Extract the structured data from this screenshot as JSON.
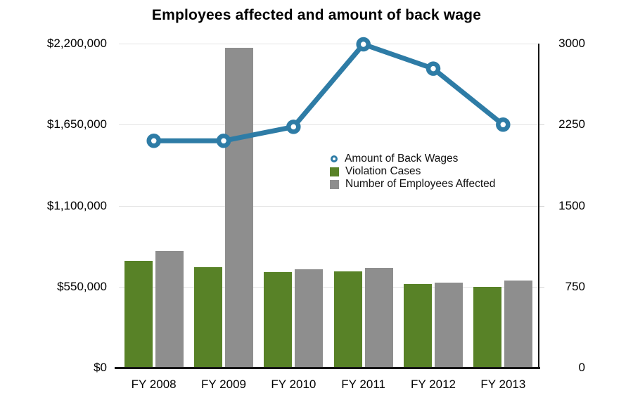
{
  "chart_data": {
    "type": "combo-bar-line",
    "title": "Employees affected and amount of back wage",
    "categories": [
      "FY 2008",
      "FY 2009",
      "FY 2010",
      "FY 2011",
      "FY 2012",
      "FY 2013"
    ],
    "series": [
      {
        "name": "Amount of Back Wages",
        "type": "line",
        "axis": "left",
        "color": "#2e7ca6",
        "marker": "open-circle",
        "values": [
          1540000,
          1540000,
          1635000,
          2195000,
          2030000,
          1650000
        ]
      },
      {
        "name": "Violation Cases",
        "type": "bar",
        "axis": "right",
        "color": "#588227",
        "values": [
          990,
          930,
          885,
          890,
          775,
          750
        ]
      },
      {
        "name": "Number of Employees Affected",
        "type": "bar",
        "axis": "right",
        "color": "#8e8e8e",
        "values": [
          1080,
          2960,
          910,
          925,
          785,
          805
        ]
      }
    ],
    "left_axis": {
      "min": 0,
      "max": 2200000,
      "tick_labels": [
        "$2,200,000",
        "$1,650,000",
        "$1,100,000",
        "$550,000",
        "$0"
      ]
    },
    "right_axis": {
      "min": 0,
      "max": 3000,
      "tick_labels": [
        "3000",
        "2250",
        "1500",
        "750",
        "0"
      ]
    },
    "legend": {
      "position": "inside-center-right"
    },
    "grid": "horizontal-light"
  },
  "colors": {
    "gridline": "#e4e4e4",
    "axis_line": "#151515",
    "text": "#000000",
    "background": "#ffffff"
  }
}
